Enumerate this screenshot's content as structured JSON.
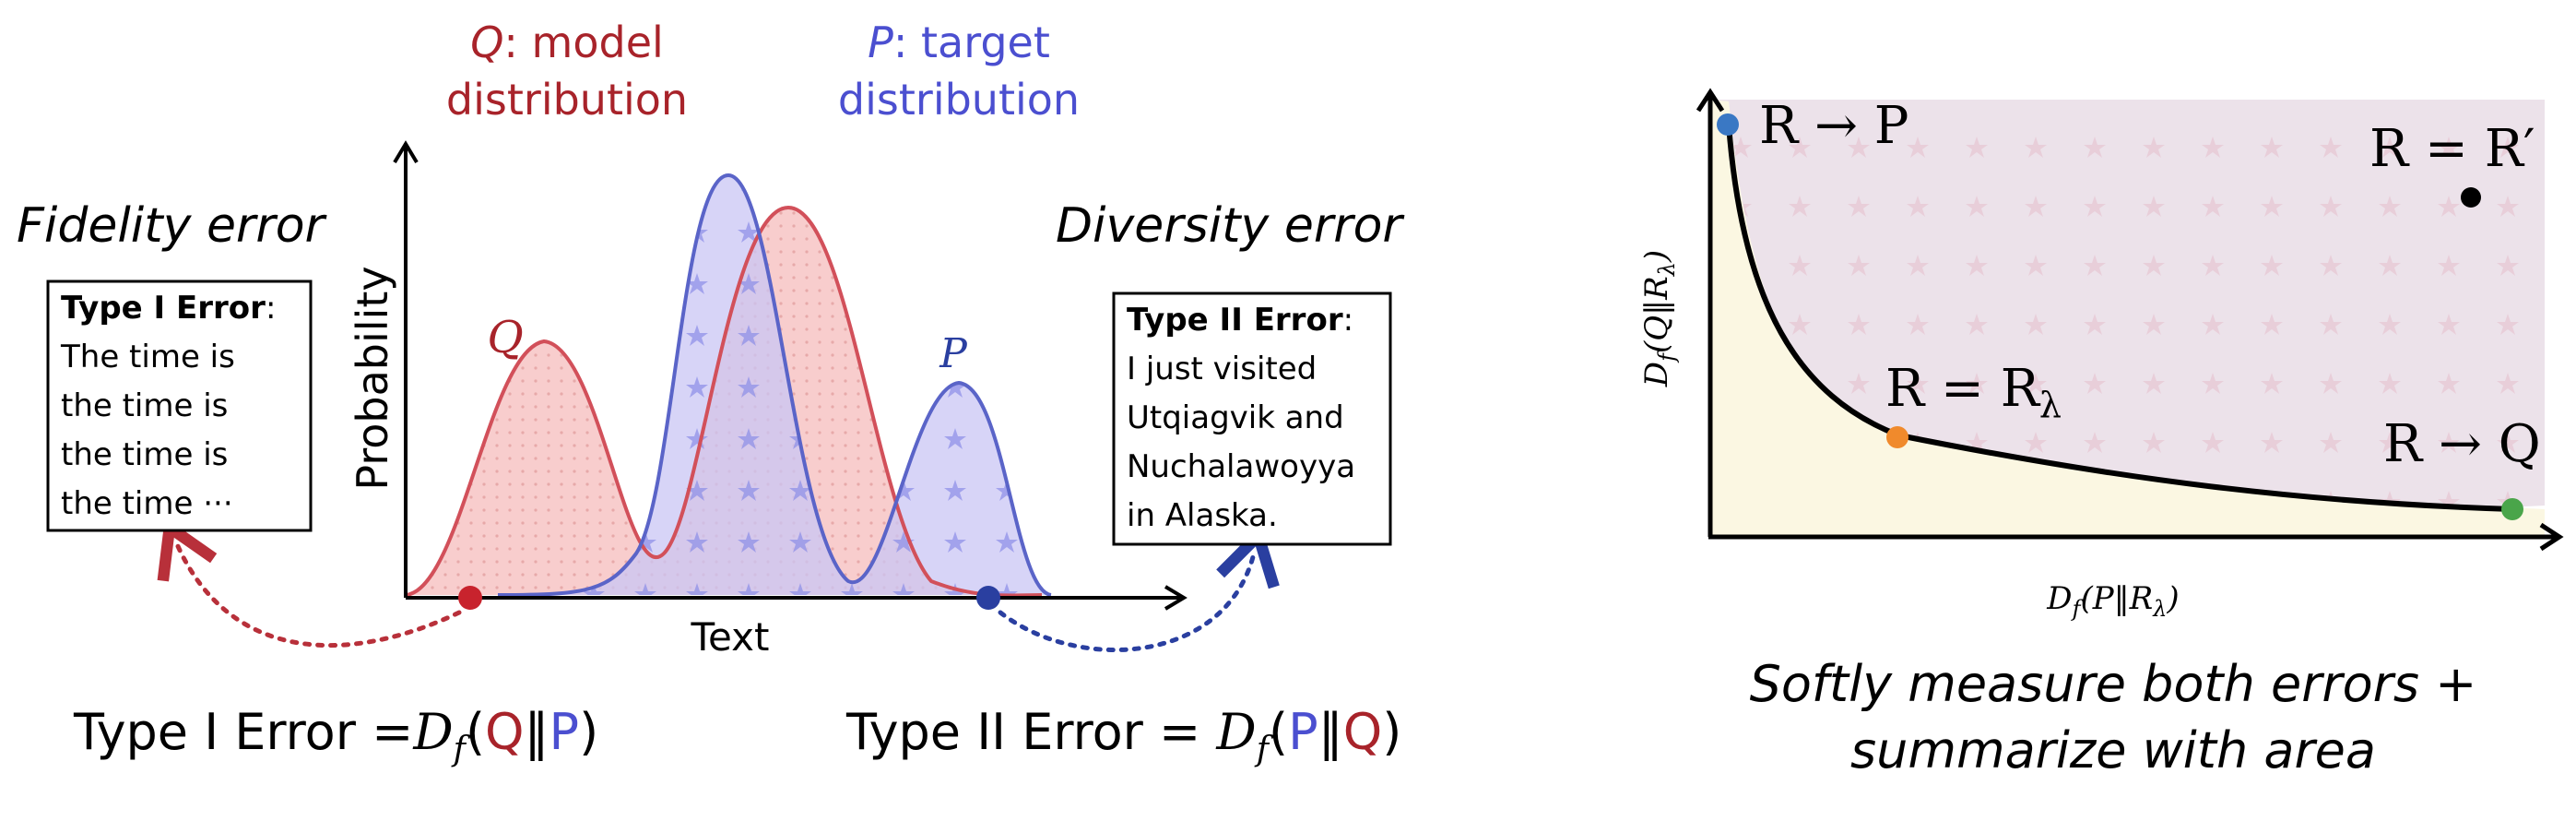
{
  "left_panel": {
    "q_label": {
      "symbol": "Q",
      "text": ": model",
      "line2": "distribution"
    },
    "p_label": {
      "symbol": "P",
      "text": ": target",
      "line2": "distribution"
    },
    "fidelity_title": "Fidelity error",
    "diversity_title": "Diversity error",
    "y_axis_label": "Probability",
    "x_axis_label": "Text",
    "curve_q_label": "Q",
    "curve_p_label": "P",
    "type1_box": {
      "title": "Type I Error",
      "colon": ":",
      "lines": [
        "The time is",
        "the time is",
        "the time is",
        "the time ···"
      ]
    },
    "type2_box": {
      "title": "Type II Error",
      "colon": ":",
      "lines": [
        "I just visited",
        "Utqiagvik and",
        "Nuchalawoyya",
        "in Alaska."
      ]
    },
    "formula1": {
      "prefix": "Type I Error =",
      "D": "D",
      "f": "f",
      "open": "(",
      "a": "Q",
      "sep": "‖",
      "b": "P",
      "close": ")"
    },
    "formula2": {
      "prefix": "Type II Error = ",
      "D": "D",
      "f": "f",
      "open": "(",
      "a": "P",
      "sep": "‖",
      "b": "Q",
      "close": ")"
    }
  },
  "right_panel": {
    "y_axis_label": {
      "D": "D",
      "sub": "f",
      "arg": "(Q‖R",
      "argsub": "λ",
      "close": ")"
    },
    "x_axis_label": {
      "D": "D",
      "sub": "f",
      "arg": "(P‖R",
      "argsub": "λ",
      "close": ")"
    },
    "points": [
      {
        "label": "R → P",
        "color": "#3a78c4"
      },
      {
        "label": "R = R′",
        "color": "#000000"
      },
      {
        "label": "R = R",
        "sub": "λ",
        "color": "#f08a2c"
      },
      {
        "label": "R → Q",
        "color": "#4aa54a"
      }
    ],
    "caption_line1": "Softly measure both errors +",
    "caption_line2": "summarize with area"
  },
  "colors": {
    "q_red": "#a8232a",
    "p_blue": "#4b4fd0",
    "q_fill": "#f7c4c4",
    "p_fill": "#c9c6f4",
    "dark_blue": "#2a3fa0",
    "region_top": "#ece2ea",
    "region_bottom": "#fbf7e2"
  }
}
